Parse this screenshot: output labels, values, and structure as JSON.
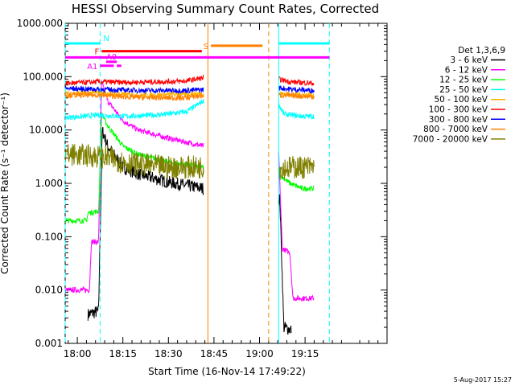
{
  "chart_data": {
    "type": "line",
    "title": "HESSI Observing Summary Count Rates, Corrected",
    "xlabel": "Start Time (16-Nov-14 17:49:22)",
    "ylabel": "Corrected Count Rate (s⁻¹ detector⁻¹)",
    "yscale": "log",
    "ylim": [
      0.001,
      1000
    ],
    "x_range_min": [
      -4,
      102
    ],
    "x_ticks": [
      {
        "t": 0,
        "label": "18:00"
      },
      {
        "t": 15,
        "label": "18:15"
      },
      {
        "t": 30,
        "label": "18:30"
      },
      {
        "t": 45,
        "label": "18:45"
      },
      {
        "t": 60,
        "label": "19:00"
      },
      {
        "t": 75,
        "label": "19:15"
      }
    ],
    "y_ticks": [
      {
        "v": 1000,
        "label": "1000.000"
      },
      {
        "v": 100,
        "label": "100.000"
      },
      {
        "v": 10,
        "label": "10.000"
      },
      {
        "v": 1,
        "label": "1.000"
      },
      {
        "v": 0.1,
        "label": "0.100"
      },
      {
        "v": 0.01,
        "label": "0.010"
      },
      {
        "v": 0.001,
        "label": "0.001"
      }
    ],
    "legend": {
      "title": "Det 1,3,6,9",
      "placement": "right",
      "entries": [
        {
          "label": "3 - 6 keV",
          "color": "#000000"
        },
        {
          "label": "6 - 12 keV",
          "color": "#ff00ff"
        },
        {
          "label": "12 - 25 keV",
          "color": "#00ff00"
        },
        {
          "label": "25 - 50 keV",
          "color": "#00ffff"
        },
        {
          "label": "50 - 100 keV",
          "color": "#ffb000"
        },
        {
          "label": "100 - 300 keV",
          "color": "#ff0000"
        },
        {
          "label": "300 - 800 keV",
          "color": "#0000ff"
        },
        {
          "label": "800 - 7000 keV",
          "color": "#ff8000"
        },
        {
          "label": "7000 - 20000 keV",
          "color": "#808000"
        }
      ]
    },
    "vertical_markers": [
      {
        "t": -4,
        "color": "#00ffff",
        "style": "dashed"
      },
      {
        "t": 7.5,
        "color": "#00ffff",
        "style": "dashed"
      },
      {
        "t": 43,
        "color": "#ff8000",
        "style": "solid"
      },
      {
        "t": 63,
        "color": "#ff8000",
        "style": "dashed"
      },
      {
        "t": 66.3,
        "color": "#00ffff",
        "style": "solid"
      },
      {
        "t": 83,
        "color": "#00ffff",
        "style": "dashed"
      }
    ],
    "flag_bars": [
      {
        "label": "N",
        "color": "#00ffff",
        "segments": [
          [
            -4,
            7.5
          ],
          [
            66.3,
            83
          ]
        ],
        "y": 420
      },
      {
        "label": "S",
        "color": "#ff8000",
        "segments": [
          [
            44,
            61
          ]
        ],
        "y": 380
      },
      {
        "label": "F",
        "color": "#ff0000",
        "segments": [
          [
            8,
            41
          ]
        ],
        "y": 300
      },
      {
        "label": "",
        "color": "#ff00ff",
        "segments": [
          [
            -4,
            83
          ]
        ],
        "y": 230
      },
      {
        "label": "A0",
        "color": "#ff00ff",
        "segments": [
          [
            9.5,
            13
          ]
        ],
        "y": 190
      },
      {
        "label": "A1",
        "color": "#ff00ff",
        "segments": [
          [
            7.5,
            12
          ],
          [
            13,
            14.5
          ]
        ],
        "y": 160
      }
    ],
    "series": [
      {
        "name": "3 - 6 keV",
        "color": "#000000",
        "points": [
          [
            3.5,
            0.0035
          ],
          [
            7,
            0.004
          ],
          [
            8.2,
            10
          ],
          [
            10,
            5
          ],
          [
            15,
            2
          ],
          [
            20,
            1.5
          ],
          [
            30,
            1.05
          ],
          [
            41.5,
            0.8
          ],
          [
            66.7,
            0.5
          ],
          [
            68,
            0.002
          ],
          [
            70.5,
            0.0018
          ]
        ]
      },
      {
        "name": "6 - 12 keV",
        "color": "#ff00ff",
        "points": [
          [
            -4,
            0.01
          ],
          [
            4,
            0.01
          ],
          [
            4.6,
            0.08
          ],
          [
            7,
            0.08
          ],
          [
            8,
            80
          ],
          [
            10,
            35
          ],
          [
            15,
            15
          ],
          [
            20,
            10
          ],
          [
            30,
            7
          ],
          [
            41.5,
            5
          ],
          [
            66.3,
            4
          ],
          [
            67.5,
            0.06
          ],
          [
            70,
            0.05
          ],
          [
            71,
            0.007
          ],
          [
            78,
            0.007
          ]
        ]
      },
      {
        "name": "12 - 25 keV",
        "color": "#00ff00",
        "points": [
          [
            -4,
            0.2
          ],
          [
            3,
            0.2
          ],
          [
            3.6,
            0.28
          ],
          [
            7,
            0.3
          ],
          [
            8,
            20
          ],
          [
            10,
            12
          ],
          [
            15,
            5
          ],
          [
            20,
            3.5
          ],
          [
            30,
            2.5
          ],
          [
            41.5,
            2
          ],
          [
            66.3,
            1.8
          ],
          [
            67,
            1.4
          ],
          [
            70,
            1.0
          ],
          [
            74,
            0.8
          ],
          [
            78,
            0.8
          ]
        ]
      },
      {
        "name": "25 - 50 keV",
        "color": "#00ffff",
        "points": [
          [
            -4,
            17
          ],
          [
            7,
            19
          ],
          [
            15,
            18
          ],
          [
            25,
            19
          ],
          [
            30,
            20
          ],
          [
            36,
            22
          ],
          [
            41.5,
            35
          ],
          [
            66.3,
            30
          ],
          [
            68,
            20
          ],
          [
            74,
            18
          ],
          [
            78,
            18
          ]
        ]
      },
      {
        "name": "50 - 100 keV",
        "color": "#ffb000",
        "points": [
          [
            -4,
            48
          ],
          [
            7,
            50
          ],
          [
            15,
            46
          ],
          [
            25,
            45
          ],
          [
            35,
            47
          ],
          [
            41.5,
            48
          ],
          [
            66.3,
            48
          ],
          [
            70,
            47
          ],
          [
            78,
            45
          ]
        ]
      },
      {
        "name": "100 - 300 keV",
        "color": "#ff0000",
        "points": [
          [
            -4,
            75
          ],
          [
            7,
            80
          ],
          [
            15,
            78
          ],
          [
            25,
            80
          ],
          [
            35,
            82
          ],
          [
            41.5,
            95
          ],
          [
            66.3,
            90
          ],
          [
            70,
            80
          ],
          [
            78,
            75
          ]
        ]
      },
      {
        "name": "300 - 800 keV",
        "color": "#0000ff",
        "points": [
          [
            -4,
            60
          ],
          [
            7,
            58
          ],
          [
            15,
            56
          ],
          [
            25,
            55
          ],
          [
            35,
            55
          ],
          [
            41.5,
            57
          ],
          [
            66.3,
            62
          ],
          [
            70,
            58
          ],
          [
            78,
            55
          ]
        ]
      },
      {
        "name": "800 - 7000 keV",
        "color": "#ff8000",
        "points": [
          [
            -4,
            45
          ],
          [
            7,
            45
          ],
          [
            15,
            42
          ],
          [
            25,
            40
          ],
          [
            35,
            40
          ],
          [
            41.5,
            44
          ],
          [
            66.3,
            45
          ],
          [
            70,
            44
          ],
          [
            78,
            42
          ]
        ]
      },
      {
        "name": "7000 - 20000 keV",
        "color": "#808000",
        "points": [
          [
            -4,
            3.5
          ],
          [
            7,
            3.2
          ],
          [
            10,
            3.0
          ],
          [
            15,
            2.5
          ],
          [
            20,
            2.3
          ],
          [
            30,
            2.0
          ],
          [
            41.5,
            2.0
          ],
          [
            66.3,
            1.9
          ],
          [
            70,
            2.0
          ],
          [
            78,
            2.0
          ]
        ]
      }
    ]
  },
  "footer": {
    "timestamp": "5-Aug-2017 15:27"
  }
}
